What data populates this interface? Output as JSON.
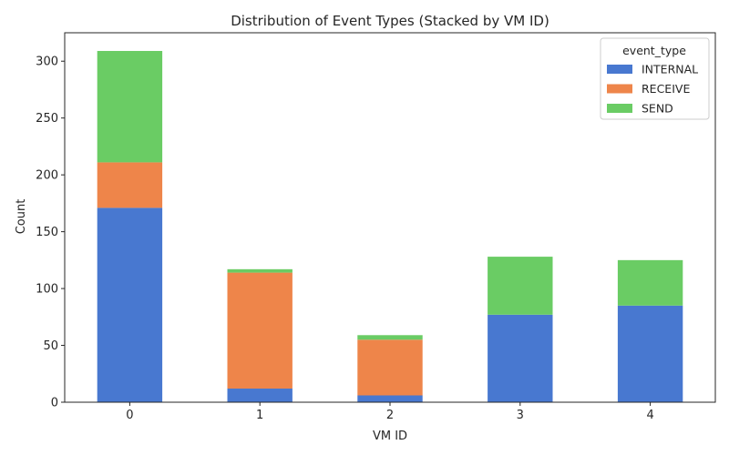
{
  "chart_data": {
    "type": "bar",
    "stacked": true,
    "title": "Distribution of Event Types (Stacked by VM ID)",
    "xlabel": "VM ID",
    "ylabel": "Count",
    "categories": [
      "0",
      "1",
      "2",
      "3",
      "4"
    ],
    "ylim": [
      0,
      325
    ],
    "yticks": [
      0,
      50,
      100,
      150,
      200,
      250,
      300
    ],
    "grid": false,
    "legend": {
      "title": "event_type",
      "placement": "top-right"
    },
    "series": [
      {
        "name": "INTERNAL",
        "color": "#4878d0",
        "values": [
          171,
          12,
          6,
          77,
          85
        ]
      },
      {
        "name": "RECEIVE",
        "color": "#ee854a",
        "values": [
          40,
          102,
          49,
          0,
          0
        ]
      },
      {
        "name": "SEND",
        "color": "#6acc64",
        "values": [
          98,
          3,
          4,
          51,
          40
        ]
      }
    ]
  }
}
